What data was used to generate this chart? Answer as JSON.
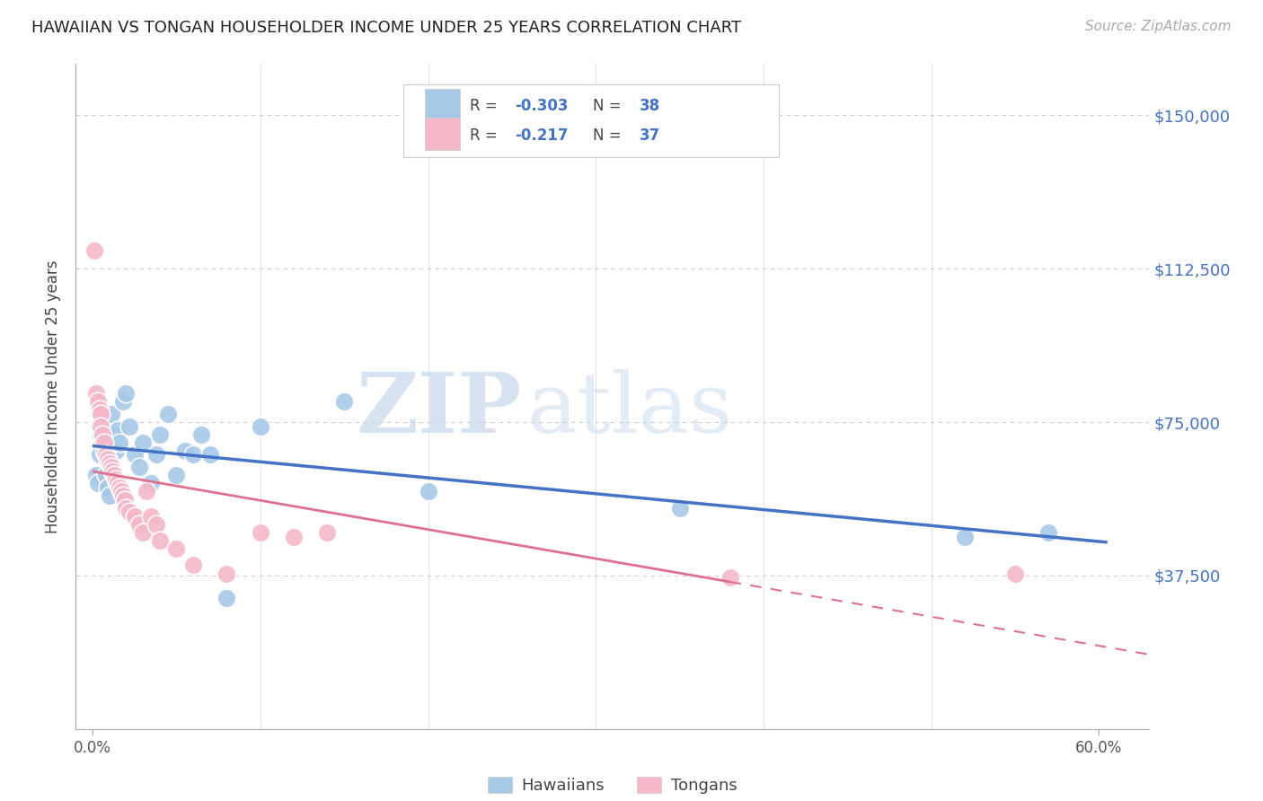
{
  "title": "HAWAIIAN VS TONGAN HOUSEHOLDER INCOME UNDER 25 YEARS CORRELATION CHART",
  "source": "Source: ZipAtlas.com",
  "ylabel": "Householder Income Under 25 years",
  "ytick_labels": [
    "$37,500",
    "$75,000",
    "$112,500",
    "$150,000"
  ],
  "ytick_vals": [
    37500,
    75000,
    112500,
    150000
  ],
  "ylim": [
    0,
    162500
  ],
  "xlim": [
    -0.01,
    0.63
  ],
  "hawaiian_R": -0.303,
  "hawaiian_N": 38,
  "tongan_R": -0.217,
  "tongan_N": 37,
  "hawaiian_color": "#a8c8e8",
  "tongan_color": "#f4b8c8",
  "hawaiian_line_color": "#4472c4",
  "tongan_line_color": "#e07090",
  "watermark_zip": "ZIP",
  "watermark_atlas": "atlas",
  "hawaiian_x": [
    0.002,
    0.003,
    0.004,
    0.005,
    0.006,
    0.007,
    0.007,
    0.008,
    0.009,
    0.01,
    0.011,
    0.012,
    0.013,
    0.014,
    0.015,
    0.016,
    0.018,
    0.02,
    0.022,
    0.025,
    0.028,
    0.03,
    0.035,
    0.038,
    0.04,
    0.045,
    0.05,
    0.055,
    0.06,
    0.065,
    0.07,
    0.08,
    0.1,
    0.15,
    0.2,
    0.35,
    0.52,
    0.57
  ],
  "hawaiian_y": [
    62000,
    60000,
    67000,
    72000,
    70000,
    74000,
    68000,
    62000,
    59000,
    57000,
    77000,
    72000,
    70000,
    68000,
    73000,
    70000,
    80000,
    82000,
    74000,
    67000,
    64000,
    70000,
    60000,
    67000,
    72000,
    77000,
    62000,
    68000,
    67000,
    72000,
    67000,
    32000,
    74000,
    80000,
    58000,
    54000,
    47000,
    48000
  ],
  "tongan_x": [
    0.001,
    0.002,
    0.003,
    0.004,
    0.005,
    0.005,
    0.006,
    0.007,
    0.008,
    0.009,
    0.01,
    0.011,
    0.012,
    0.013,
    0.014,
    0.015,
    0.016,
    0.017,
    0.018,
    0.019,
    0.02,
    0.022,
    0.025,
    0.028,
    0.03,
    0.032,
    0.035,
    0.038,
    0.04,
    0.05,
    0.06,
    0.08,
    0.1,
    0.12,
    0.14,
    0.38,
    0.55
  ],
  "tongan_y": [
    117000,
    82000,
    80000,
    78000,
    77000,
    74000,
    72000,
    70000,
    67000,
    66000,
    65000,
    64000,
    63000,
    62000,
    61000,
    60000,
    59000,
    58000,
    57000,
    56000,
    54000,
    53000,
    52000,
    50000,
    48000,
    58000,
    52000,
    50000,
    46000,
    44000,
    40000,
    38000,
    48000,
    47000,
    48000,
    37000,
    38000
  ]
}
